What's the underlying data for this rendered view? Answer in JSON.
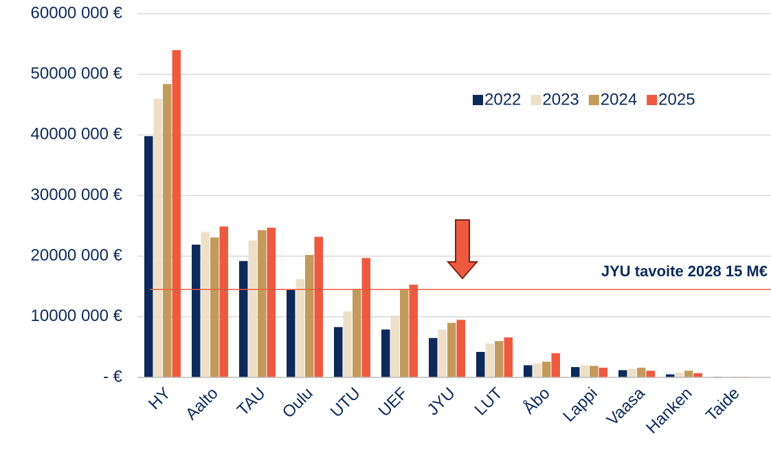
{
  "chart_data": {
    "type": "bar",
    "categories": [
      "HY",
      "Aalto",
      "TAU",
      "Oulu",
      "UTU",
      "UEF",
      "JYU",
      "LUT",
      "Åbo",
      "Lappi",
      "Vaasa",
      "Hanken",
      "Taide"
    ],
    "series": [
      {
        "name": "2022",
        "color": "#0d2a5b",
        "values": [
          39800000,
          21900000,
          19200000,
          14500000,
          8300000,
          7900000,
          6500000,
          4200000,
          2000000,
          1700000,
          1200000,
          500000,
          100000
        ]
      },
      {
        "name": "2023",
        "color": "#eee0c8",
        "values": [
          46000000,
          24000000,
          22600000,
          16200000,
          10900000,
          10200000,
          7900000,
          5600000,
          2300000,
          2000000,
          1400000,
          800000,
          100000
        ]
      },
      {
        "name": "2024",
        "color": "#c49a5c",
        "values": [
          48400000,
          23100000,
          24300000,
          20200000,
          14600000,
          14600000,
          9000000,
          6000000,
          2600000,
          1900000,
          1600000,
          1100000,
          100000
        ]
      },
      {
        "name": "2025",
        "color": "#ee5a40",
        "values": [
          54000000,
          24900000,
          24700000,
          23200000,
          19700000,
          15300000,
          9500000,
          6600000,
          4000000,
          1600000,
          1100000,
          700000,
          100000
        ]
      }
    ],
    "ylim": [
      0,
      60000000
    ],
    "yticks": [
      {
        "value": 0,
        "label": "- €"
      },
      {
        "value": 10000000,
        "label": "10000 000 €"
      },
      {
        "value": 20000000,
        "label": "20000 000 €"
      },
      {
        "value": 30000000,
        "label": "30000 000 €"
      },
      {
        "value": 40000000,
        "label": "40000 000 €"
      },
      {
        "value": 50000000,
        "label": "50000 000 €"
      },
      {
        "value": 60000000,
        "label": "60000 000 €"
      }
    ],
    "grid": true,
    "legend": "upper right",
    "reference_line": {
      "value": 14500000,
      "label": "JYU tavoite 2028 15 M€",
      "color": "#ee5a40"
    }
  }
}
